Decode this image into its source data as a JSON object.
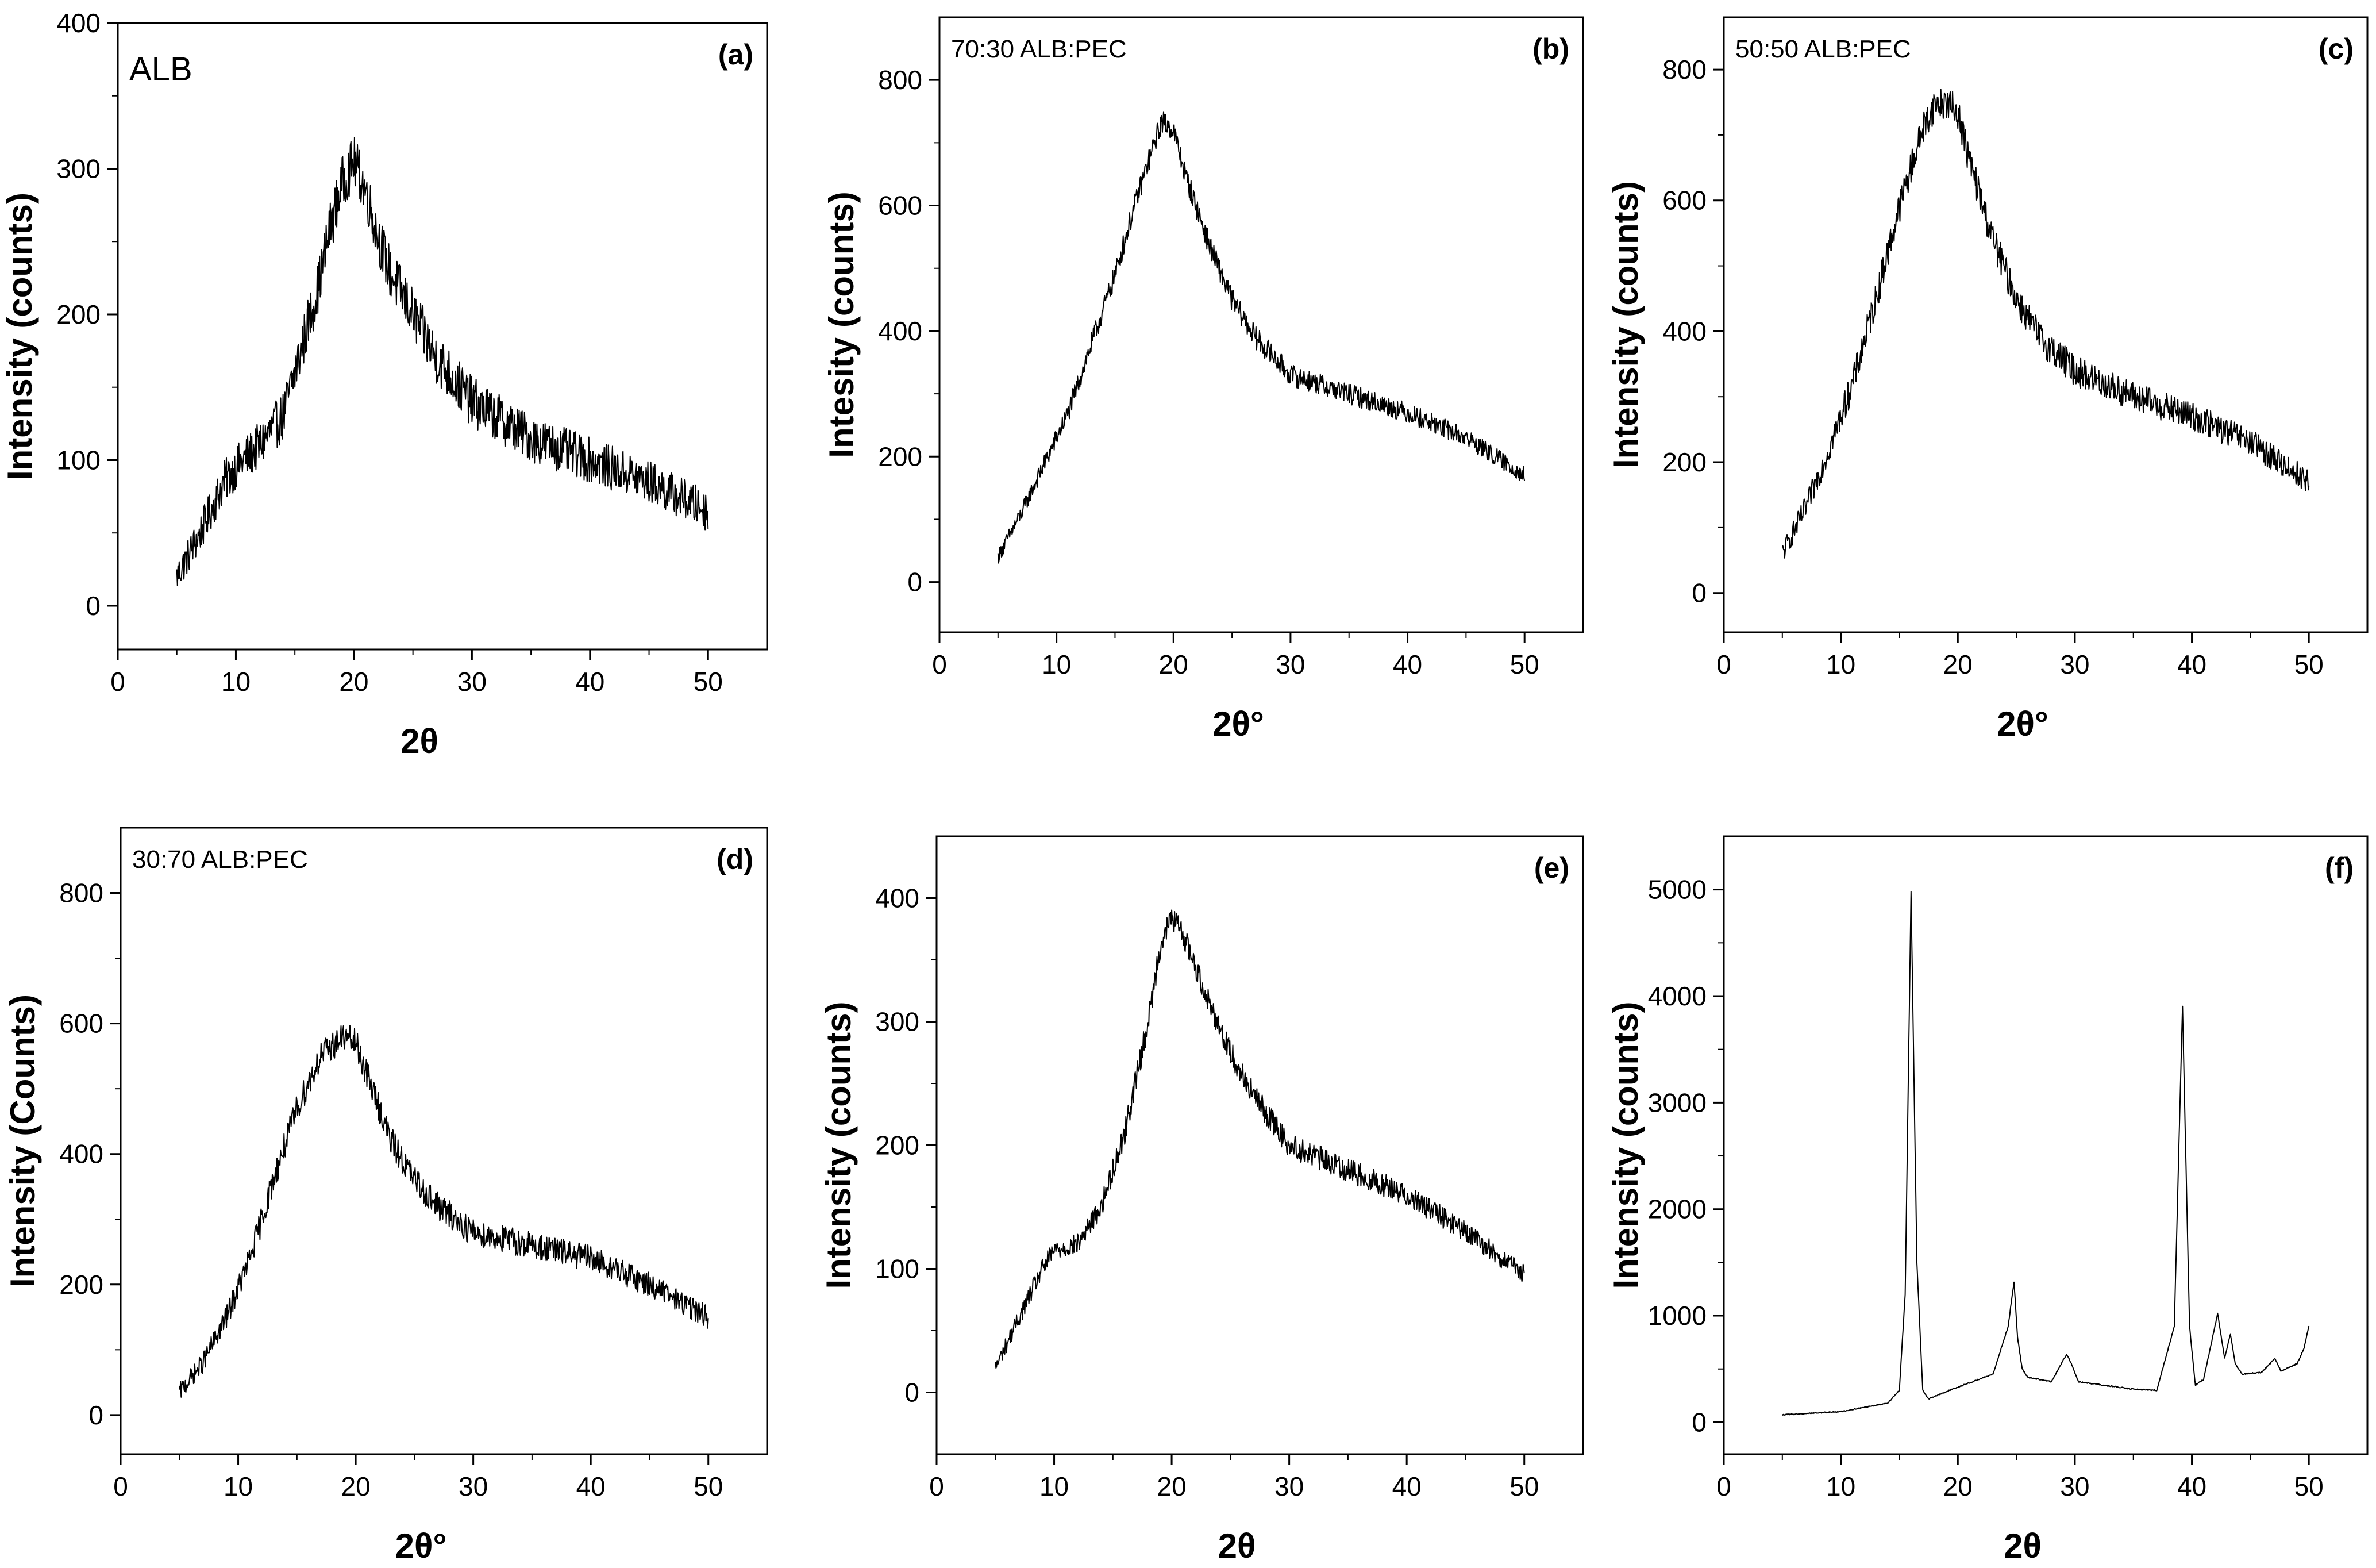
{
  "figure": {
    "background": "#ffffff",
    "line_color": "#000000"
  },
  "chart_data": [
    {
      "id": "a",
      "type": "line",
      "panel_label": "(a)",
      "sample_label": "ALB",
      "title": "",
      "xlabel": "2θ",
      "ylabel": "Intensity (counts)",
      "xlim": [
        0,
        55
      ],
      "ylim": [
        -30,
        400
      ],
      "xticks": [
        0,
        10,
        20,
        30,
        40,
        50
      ],
      "yticks": [
        0,
        100,
        200,
        300,
        400
      ],
      "series": [
        {
          "name": "ALB",
          "noise": 18,
          "x": [
            5,
            7,
            9,
            10,
            12,
            14,
            15,
            16,
            17,
            18,
            19,
            20,
            21,
            22,
            23,
            25,
            27,
            30,
            35,
            40,
            45,
            50
          ],
          "y": [
            20,
            50,
            85,
            95,
            110,
            130,
            160,
            190,
            220,
            260,
            290,
            305,
            285,
            255,
            230,
            200,
            170,
            140,
            115,
            100,
            85,
            65
          ]
        }
      ]
    },
    {
      "id": "b",
      "type": "line",
      "panel_label": "(b)",
      "sample_label": "70:30 ALB:PEC",
      "title": "",
      "xlabel": "2θ°",
      "ylabel": "Intesity (counts)",
      "xlim": [
        0,
        55
      ],
      "ylim": [
        -80,
        900
      ],
      "xticks": [
        0,
        10,
        20,
        30,
        40,
        50
      ],
      "yticks": [
        0,
        200,
        400,
        600,
        800
      ],
      "series": [
        {
          "name": "70:30 ALB:PEC",
          "noise": 18,
          "x": [
            5,
            7,
            9,
            11,
            13,
            15,
            17,
            19,
            20,
            21,
            23,
            25,
            27,
            30,
            35,
            40,
            45,
            50
          ],
          "y": [
            40,
            110,
            190,
            270,
            380,
            490,
            620,
            735,
            720,
            650,
            540,
            450,
            390,
            330,
            300,
            270,
            230,
            170
          ]
        }
      ]
    },
    {
      "id": "c",
      "type": "line",
      "panel_label": "(c)",
      "sample_label": "50:50 ALB:PEC",
      "title": "",
      "xlabel": "2θ°",
      "ylabel": "Intensity (counts)",
      "xlim": [
        0,
        55
      ],
      "ylim": [
        -60,
        880
      ],
      "xticks": [
        0,
        10,
        20,
        30,
        40,
        50
      ],
      "yticks": [
        0,
        200,
        400,
        600,
        800
      ],
      "series": [
        {
          "name": "50:50 ALB:PEC",
          "noise": 25,
          "x": [
            5,
            7,
            9,
            11,
            13,
            15,
            17,
            18,
            19,
            20,
            21,
            23,
            25,
            27,
            30,
            35,
            40,
            45,
            50
          ],
          "y": [
            60,
            130,
            220,
            320,
            450,
            590,
            710,
            745,
            750,
            735,
            660,
            540,
            450,
            390,
            340,
            300,
            270,
            230,
            170
          ]
        }
      ]
    },
    {
      "id": "d",
      "type": "line",
      "panel_label": "(d)",
      "sample_label": "30:70 ALB:PEC",
      "title": "",
      "xlabel": "2θ°",
      "ylabel": "Intensity (Counts)",
      "xlim": [
        0,
        55
      ],
      "ylim": [
        -60,
        900
      ],
      "xticks": [
        0,
        10,
        20,
        30,
        40,
        50
      ],
      "yticks": [
        0,
        200,
        400,
        600,
        800
      ],
      "series": [
        {
          "name": "30:70 ALB:PEC",
          "noise": 22,
          "x": [
            5,
            7,
            9,
            11,
            13,
            15,
            17,
            19,
            20,
            21,
            23,
            25,
            27,
            30,
            35,
            40,
            45,
            50
          ],
          "y": [
            35,
            80,
            150,
            240,
            360,
            470,
            550,
            580,
            570,
            520,
            420,
            360,
            320,
            280,
            260,
            240,
            200,
            150
          ]
        }
      ]
    },
    {
      "id": "e",
      "type": "line",
      "panel_label": "(e)",
      "sample_label": "",
      "title": "",
      "xlabel": "2θ",
      "ylabel": "Intensity (counts)",
      "xlim": [
        0,
        55
      ],
      "ylim": [
        -50,
        450
      ],
      "xticks": [
        0,
        10,
        20,
        30,
        40,
        50
      ],
      "yticks": [
        0,
        100,
        200,
        300,
        400
      ],
      "series": [
        {
          "name": "e",
          "noise": 10,
          "x": [
            5,
            7,
            9,
            10,
            12,
            14,
            16,
            18,
            19,
            20,
            21,
            23,
            25,
            27,
            30,
            35,
            40,
            45,
            50
          ],
          "y": [
            20,
            60,
            100,
            115,
            120,
            150,
            210,
            300,
            360,
            385,
            370,
            320,
            275,
            240,
            200,
            180,
            160,
            130,
            95
          ]
        }
      ]
    },
    {
      "id": "f",
      "type": "line",
      "panel_label": "(f)",
      "sample_label": "",
      "title": "",
      "xlabel": "2θ",
      "ylabel": "Intensity (counts)",
      "xlim": [
        0,
        55
      ],
      "ylim": [
        -300,
        5500
      ],
      "xticks": [
        0,
        10,
        20,
        30,
        40,
        50
      ],
      "yticks": [
        0,
        1000,
        2000,
        3000,
        4000,
        5000
      ],
      "series": [
        {
          "name": "f",
          "noise": 8,
          "x": [
            5,
            10,
            14,
            15,
            15.5,
            16.0,
            16.5,
            17.0,
            17.5,
            20,
            23,
            24.3,
            24.8,
            25.1,
            25.5,
            26,
            28,
            29.3,
            29.7,
            30.3,
            35,
            37,
            38.5,
            39.2,
            39.8,
            40.3,
            41,
            42.2,
            42.8,
            43.3,
            43.7,
            44.3,
            46,
            47.1,
            47.6,
            49,
            49.6,
            50
          ],
          "y": [
            70,
            100,
            180,
            300,
            1200,
            4980,
            1500,
            300,
            220,
            330,
            450,
            900,
            1320,
            800,
            500,
            420,
            380,
            640,
            550,
            380,
            310,
            300,
            900,
            3900,
            900,
            350,
            400,
            1020,
            600,
            830,
            550,
            450,
            470,
            600,
            480,
            550,
            700,
            900
          ]
        }
      ]
    }
  ]
}
